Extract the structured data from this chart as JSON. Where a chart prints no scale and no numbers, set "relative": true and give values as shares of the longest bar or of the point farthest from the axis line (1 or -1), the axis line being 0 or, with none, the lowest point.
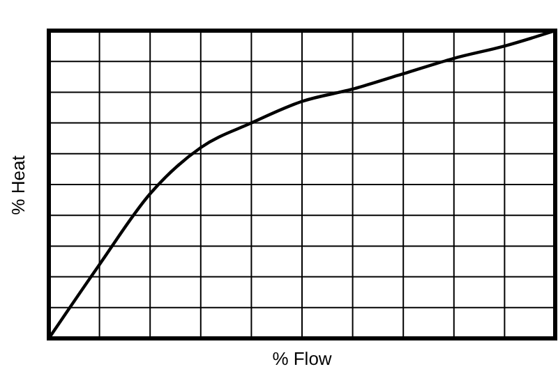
{
  "chart_data": {
    "type": "line",
    "xlabel": "% Flow",
    "ylabel": "% Heat",
    "relative": true,
    "grid": true,
    "marker": "none",
    "line_style": "solid",
    "categories": [
      null,
      null,
      null,
      null,
      null,
      null,
      null,
      null,
      null,
      null,
      null
    ],
    "series": [
      {
        "color": "#000000",
        "values": [
          0,
          0.24,
          0.47,
          0.62,
          0.7,
          0.77,
          0.81,
          0.86,
          0.91,
          0.95,
          1
        ]
      }
    ]
  }
}
